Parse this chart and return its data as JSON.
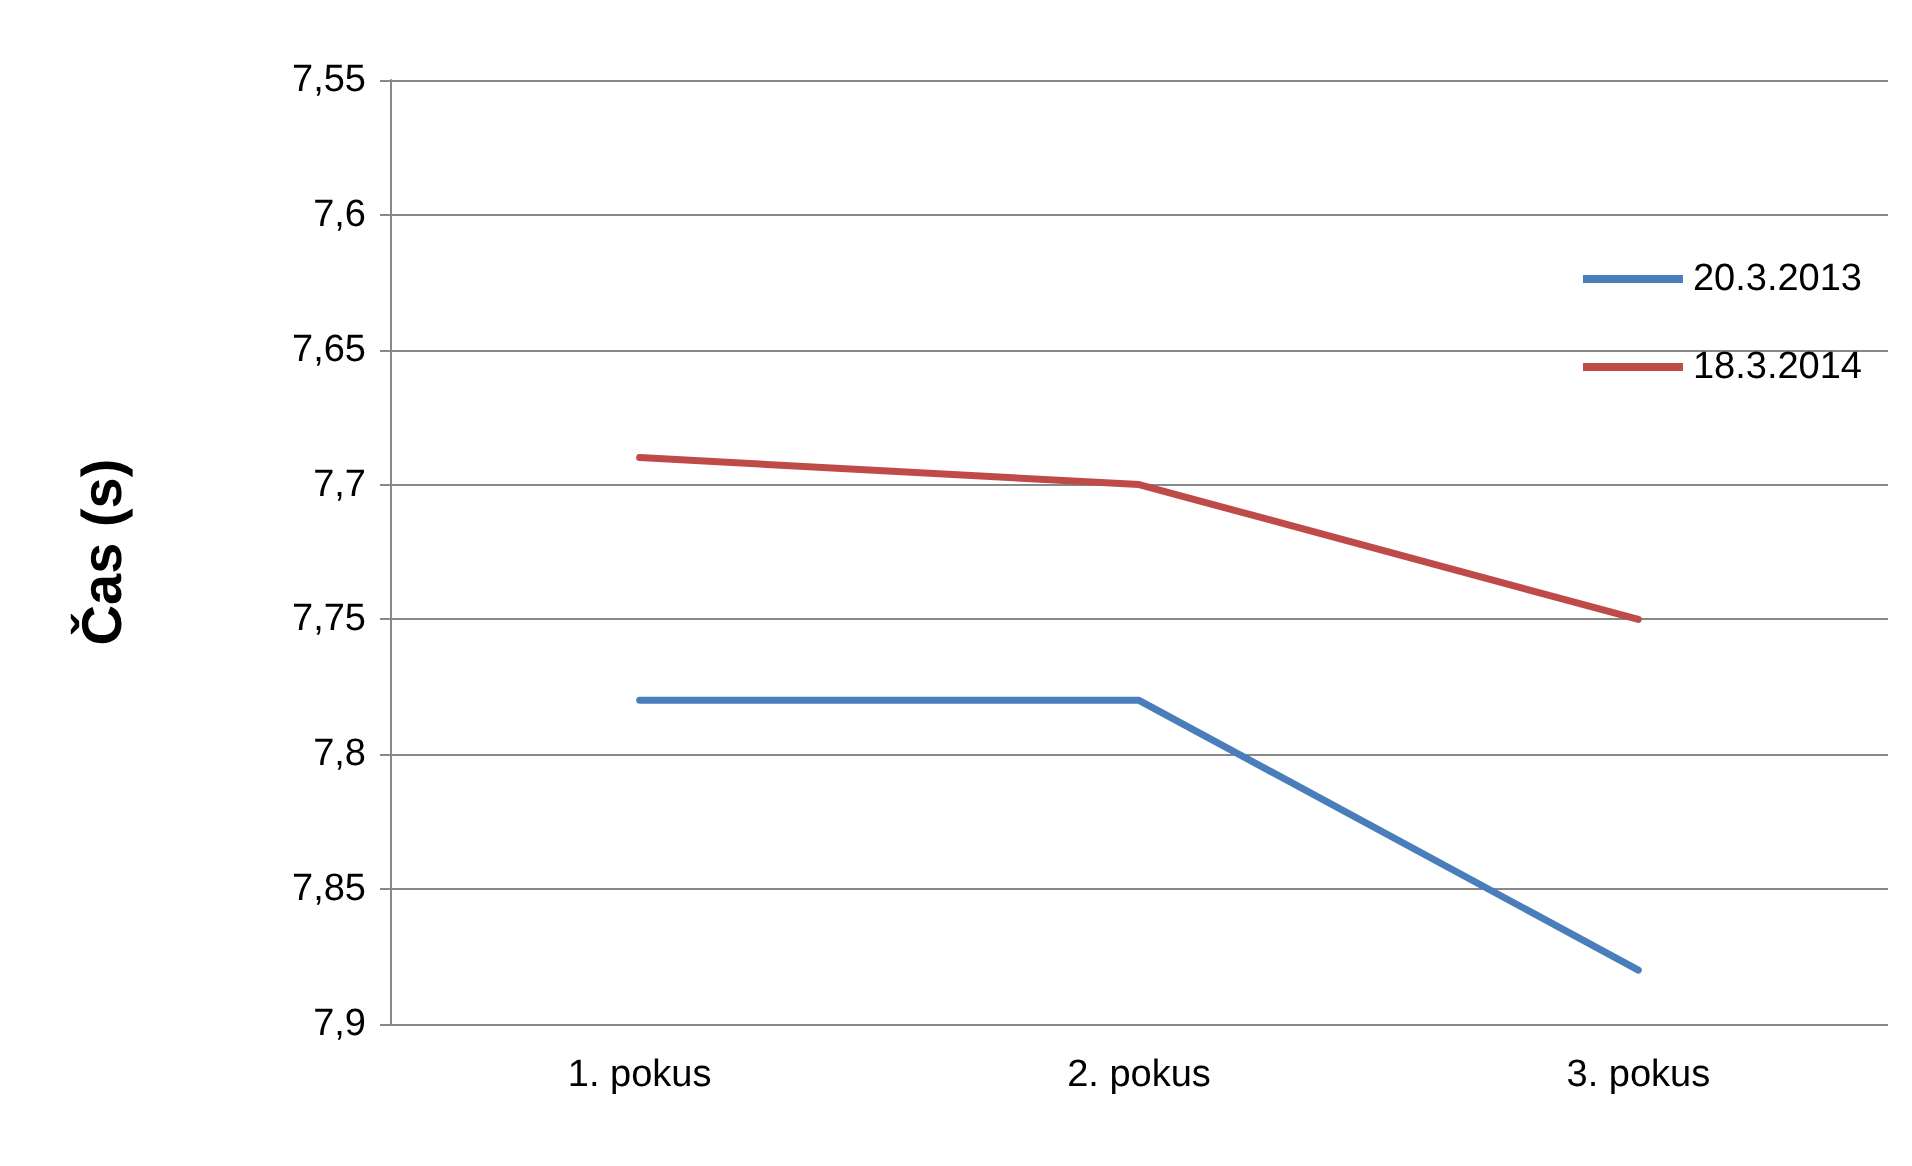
{
  "chart_data": {
    "type": "line",
    "ylabel": "Čas (s)",
    "categories": [
      "1. pokus",
      "2. pokus",
      "3. pokus"
    ],
    "series": [
      {
        "name": "20.3.2013",
        "color": "#4a7ebb",
        "values": [
          7.78,
          7.78,
          7.88
        ]
      },
      {
        "name": "18.3.2014",
        "color": "#be4b48",
        "values": [
          7.69,
          7.7,
          7.75
        ]
      }
    ],
    "ylim": [
      7.9,
      7.55
    ],
    "yticks": [
      {
        "value": 7.55,
        "label": "7,55"
      },
      {
        "value": 7.6,
        "label": "7,6"
      },
      {
        "value": 7.65,
        "label": "7,65"
      },
      {
        "value": 7.7,
        "label": "7,7"
      },
      {
        "value": 7.75,
        "label": "7,75"
      },
      {
        "value": 7.8,
        "label": "7,8"
      },
      {
        "value": 7.85,
        "label": "7,85"
      },
      {
        "value": 7.9,
        "label": "7,9"
      }
    ],
    "grid": "y",
    "legend": "right",
    "marker": "none",
    "line_style": "solid"
  }
}
